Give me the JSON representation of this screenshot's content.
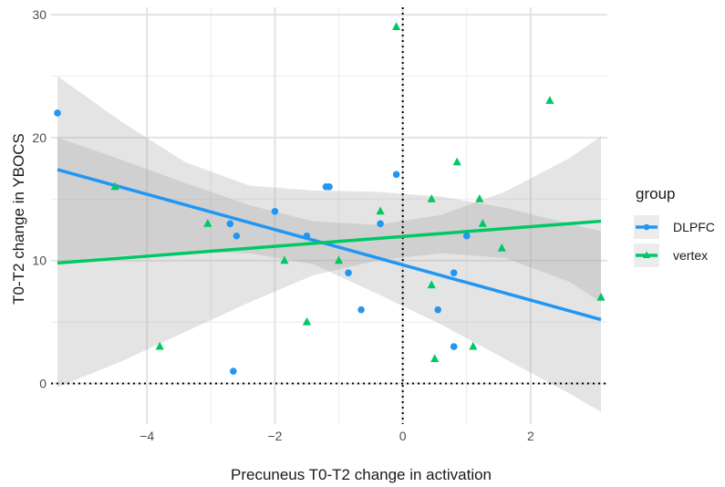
{
  "chart_data": {
    "type": "scatter",
    "title": "",
    "xlabel": "Precuneus T0-T2 change in activation",
    "ylabel": "T0-T2 change in YBOCS",
    "xlim": [
      -5.5,
      3.2
    ],
    "ylim": [
      -3.3,
      30.6
    ],
    "x_ticks": [
      -4,
      -2,
      0,
      2
    ],
    "x_tick_labels": [
      "−4",
      "−2",
      "0",
      "2"
    ],
    "y_ticks": [
      0,
      10,
      20,
      30
    ],
    "y_tick_labels": [
      "0",
      "10",
      "20",
      "30"
    ],
    "grid": true,
    "reference_lines": {
      "x": 0,
      "y": 0,
      "style": "dotted"
    },
    "legend": {
      "title": "group",
      "position": "right"
    },
    "series": [
      {
        "name": "DLPFC",
        "marker": "circle",
        "color": "#2196F3",
        "points": [
          {
            "x": -5.4,
            "y": 22
          },
          {
            "x": -2.65,
            "y": 1
          },
          {
            "x": -2.7,
            "y": 13
          },
          {
            "x": -2.6,
            "y": 12
          },
          {
            "x": -2.0,
            "y": 14
          },
          {
            "x": -1.5,
            "y": 12
          },
          {
            "x": -1.2,
            "y": 16
          },
          {
            "x": -1.15,
            "y": 16
          },
          {
            "x": -0.85,
            "y": 9
          },
          {
            "x": -0.65,
            "y": 6
          },
          {
            "x": -0.35,
            "y": 13
          },
          {
            "x": -0.1,
            "y": 17
          },
          {
            "x": 0.55,
            "y": 6
          },
          {
            "x": 0.8,
            "y": 9
          },
          {
            "x": 0.8,
            "y": 3
          },
          {
            "x": 1.0,
            "y": 12
          }
        ],
        "fit": {
          "x": [
            -5.4,
            3.1
          ],
          "y": [
            17.4,
            5.2
          ]
        },
        "ci": {
          "x": [
            -5.4,
            -4.4,
            -3.4,
            -2.4,
            -1.4,
            -0.4,
            0.6,
            1.6,
            2.6,
            3.1
          ],
          "upper": [
            25.0,
            21.3,
            18.0,
            16.1,
            15.7,
            15.6,
            15.2,
            14.3,
            13.0,
            12.4
          ],
          "lower": [
            9.9,
            10.4,
            10.7,
            10.6,
            9.7,
            7.3,
            4.8,
            2.0,
            -0.8,
            -2.3
          ]
        }
      },
      {
        "name": "vertex",
        "marker": "triangle",
        "color": "#00C864",
        "points": [
          {
            "x": -4.5,
            "y": 16
          },
          {
            "x": -3.8,
            "y": 3
          },
          {
            "x": -3.05,
            "y": 13
          },
          {
            "x": -1.85,
            "y": 10
          },
          {
            "x": -1.5,
            "y": 5
          },
          {
            "x": -1.0,
            "y": 10
          },
          {
            "x": -0.35,
            "y": 14
          },
          {
            "x": -0.1,
            "y": 29
          },
          {
            "x": 0.45,
            "y": 15
          },
          {
            "x": 0.45,
            "y": 8
          },
          {
            "x": 0.5,
            "y": 2
          },
          {
            "x": 0.85,
            "y": 18
          },
          {
            "x": 1.1,
            "y": 3
          },
          {
            "x": 1.2,
            "y": 15
          },
          {
            "x": 1.25,
            "y": 13
          },
          {
            "x": 1.55,
            "y": 11
          },
          {
            "x": 2.3,
            "y": 23
          },
          {
            "x": 3.1,
            "y": 7
          }
        ],
        "fit": {
          "x": [
            -5.4,
            3.1
          ],
          "y": [
            9.8,
            13.2
          ]
        },
        "ci": {
          "x": [
            -5.4,
            -4.4,
            -3.4,
            -2.4,
            -1.4,
            -0.4,
            0.6,
            1.6,
            2.6,
            3.1
          ],
          "upper": [
            20.0,
            18.2,
            16.3,
            14.5,
            13.2,
            12.9,
            13.7,
            15.6,
            18.3,
            20.1
          ],
          "lower": [
            -0.3,
            1.8,
            4.2,
            6.6,
            8.8,
            10.0,
            10.6,
            10.2,
            8.3,
            6.6
          ]
        }
      }
    ]
  }
}
